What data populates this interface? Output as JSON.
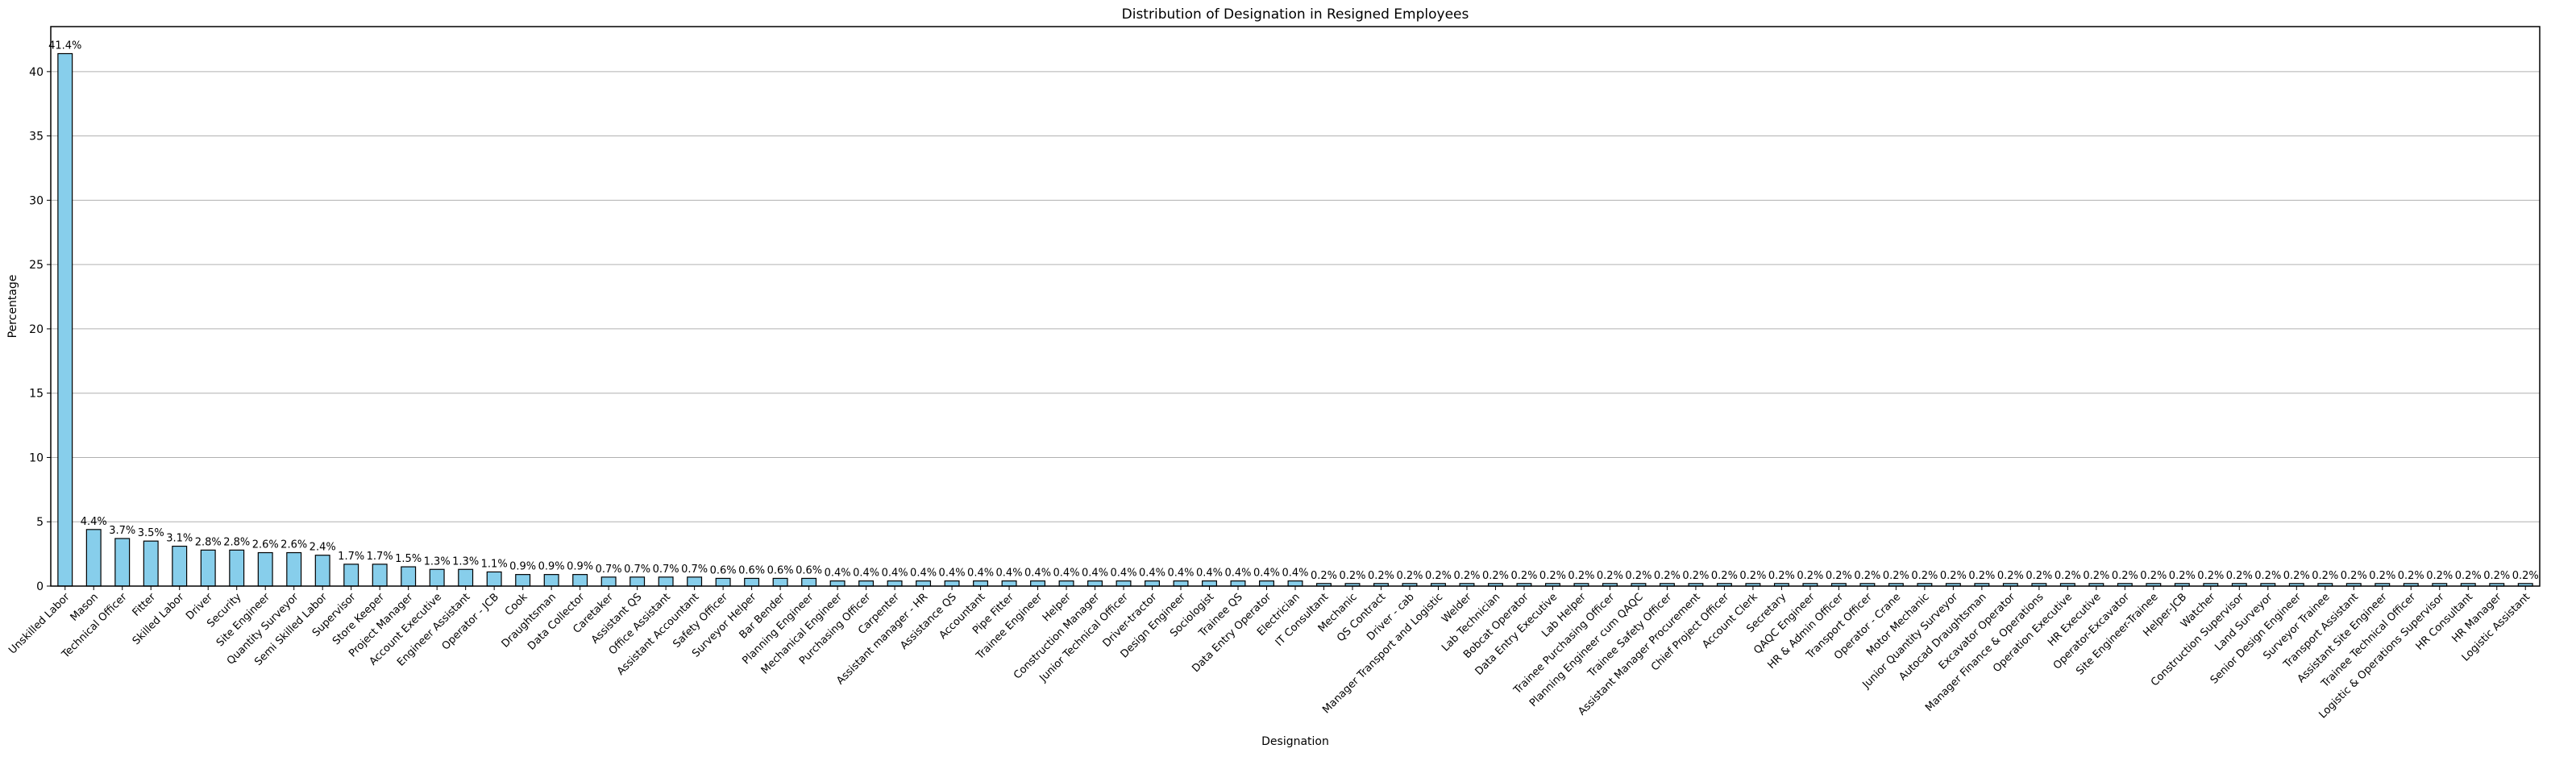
{
  "chart_data": {
    "type": "bar",
    "title": "Distribution of Designation in Resigned Employees",
    "xlabel": "Designation",
    "ylabel": "Percentage",
    "ylim": [
      0,
      43.5
    ],
    "yticks": [
      0,
      5,
      10,
      15,
      20,
      25,
      30,
      35,
      40
    ],
    "grid": "horizontal",
    "bar_color": "#87ceeb",
    "categories": [
      "Unskilled Labor",
      "Mason",
      "Technical Officer",
      "Fitter",
      "Skilled Labor",
      "Driver",
      "Security",
      "Site Engineer",
      "Quantity Surveyor",
      "Semi Skilled Labor",
      "Supervisor",
      "Store Keeper",
      "Project Manager",
      "Account Executive",
      "Engineer Assistant",
      "Operator - JCB",
      "Cook",
      "Draughtsman",
      "Data Collector",
      "Caretaker",
      "Assistant QS",
      "Office Assistant",
      "Assistant Accountant",
      "Safety Officer",
      "Surveyor Helper",
      "Bar Bender",
      "Planning Engineer",
      "Mechanical Engineer",
      "Purchasing Officer",
      "Carpenter",
      "Assistant manager - HR",
      "Assistance QS",
      "Accountant",
      "Pipe Fitter",
      "Trainee Engineer",
      "Helper",
      "Construction Manager",
      "Junior Technical Officer",
      "Driver-tractor",
      "Design Engineer",
      "Sociologist",
      "Trainee QS",
      "Data Entry Operator",
      "Electrician",
      "IT Consultant",
      "Mechanic",
      "QS Contract",
      "Driver - cab",
      "Manager Transport and Logistic",
      "Welder",
      "Lab Technician",
      "Bobcat Operator",
      "Data Entry Executive",
      "Lab Helper",
      "Trainee Purchasing Officer",
      "Planning Engineer cum QAQC",
      "Trainee Safety Officer",
      "Assistant Manager Procurement",
      "Chief Project Officer",
      "Account Clerk",
      "Secretary",
      "QAQC Engineer",
      "HR & Admin Officer",
      "Transport Officer",
      "Operator - Crane",
      "Motor Mechanic",
      "Junior Quantity Surveyor",
      "Autocad Draughtsman",
      "Excavator Operator",
      "Manager Finance & Operations",
      "Operation Executive",
      "HR Executive",
      "Operator-Excavator",
      "Site Engineer-Trainee",
      "Helper-JCB",
      "Watcher",
      "Construction Supervisor",
      "Land Surveyor",
      "Senior Design Engineer",
      "Surveyor Trainee",
      "Transport Assistant",
      "Assistant Site Engineer",
      "Trainee Technical Officer",
      "Logistic & Operations Supervisor",
      "HR Consultant",
      "HR Manager",
      "Logistic Assistant"
    ],
    "values": [
      41.4,
      4.4,
      3.7,
      3.5,
      3.1,
      2.8,
      2.8,
      2.6,
      2.6,
      2.4,
      1.7,
      1.7,
      1.5,
      1.3,
      1.3,
      1.1,
      0.9,
      0.9,
      0.9,
      0.7,
      0.7,
      0.7,
      0.7,
      0.6,
      0.6,
      0.6,
      0.6,
      0.4,
      0.4,
      0.4,
      0.4,
      0.4,
      0.4,
      0.4,
      0.4,
      0.4,
      0.4,
      0.4,
      0.4,
      0.4,
      0.4,
      0.4,
      0.4,
      0.4,
      0.2,
      0.2,
      0.2,
      0.2,
      0.2,
      0.2,
      0.2,
      0.2,
      0.2,
      0.2,
      0.2,
      0.2,
      0.2,
      0.2,
      0.2,
      0.2,
      0.2,
      0.2,
      0.2,
      0.2,
      0.2,
      0.2,
      0.2,
      0.2,
      0.2,
      0.2,
      0.2,
      0.2,
      0.2,
      0.2,
      0.2,
      0.2,
      0.2,
      0.2,
      0.2,
      0.2,
      0.2,
      0.2,
      0.2,
      0.2,
      0.2,
      0.2,
      0.2
    ]
  }
}
